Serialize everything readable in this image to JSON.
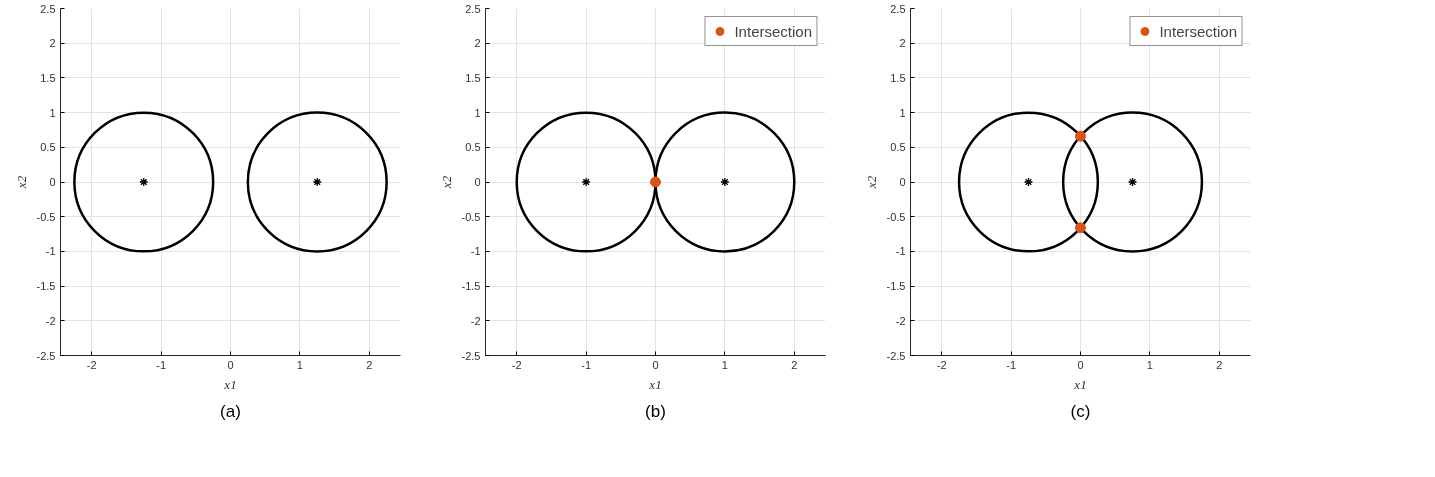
{
  "chart_data": [
    {
      "type": "bubble",
      "xlabel": "x1",
      "ylabel": "x2",
      "annotations": [
        "(a)"
      ],
      "xlim": [
        -2.45,
        2.45
      ],
      "ylim": [
        -2.5,
        2.5
      ],
      "xticks": [
        -2,
        -1,
        0,
        1,
        2
      ],
      "yticks": [
        -2.5,
        -2,
        -1.5,
        -1,
        -0.5,
        0,
        0.5,
        1,
        1.5,
        2,
        2.5
      ],
      "grid": true,
      "series": [
        {
          "color": "#000000",
          "x": [
            -1.25,
            1.25
          ],
          "values": [
            0,
            0
          ],
          "sizes": [
            1,
            1
          ]
        },
        {
          "type": "scatter",
          "marker": "cross",
          "color": "#000000",
          "x": [
            -1.25,
            1.25
          ],
          "values": [
            0,
            0
          ]
        }
      ]
    },
    {
      "type": "bubble",
      "xlabel": "x1",
      "ylabel": "x2",
      "annotations": [
        "(b)"
      ],
      "xlim": [
        -2.45,
        2.45
      ],
      "ylim": [
        -2.5,
        2.5
      ],
      "xticks": [
        -2,
        -1,
        0,
        1,
        2
      ],
      "yticks": [
        -2.5,
        -2,
        -1.5,
        -1,
        -0.5,
        0,
        0.5,
        1,
        1.5,
        2,
        2.5
      ],
      "grid": true,
      "legend": "top right",
      "series": [
        {
          "color": "#000000",
          "x": [
            -1,
            1
          ],
          "values": [
            0,
            0
          ],
          "sizes": [
            1,
            1
          ]
        },
        {
          "type": "scatter",
          "marker": "cross",
          "color": "#000000",
          "x": [
            -1,
            1
          ],
          "values": [
            0,
            0
          ]
        },
        {
          "type": "scatter",
          "marker": "circle",
          "name": "Intersection",
          "color": "#d95319",
          "x": [
            0
          ],
          "values": [
            0
          ]
        }
      ]
    },
    {
      "type": "bubble",
      "xlabel": "x1",
      "ylabel": "x2",
      "annotations": [
        "(c)"
      ],
      "xlim": [
        -2.45,
        2.45
      ],
      "ylim": [
        -2.5,
        2.5
      ],
      "xticks": [
        -2,
        -1,
        0,
        1,
        2
      ],
      "yticks": [
        -2.5,
        -2,
        -1.5,
        -1,
        -0.5,
        0,
        0.5,
        1,
        1.5,
        2,
        2.5
      ],
      "grid": true,
      "legend": "top right",
      "series": [
        {
          "color": "#000000",
          "x": [
            -0.75,
            0.75
          ],
          "values": [
            0,
            0
          ],
          "sizes": [
            1,
            1
          ]
        },
        {
          "type": "scatter",
          "marker": "cross",
          "color": "#000000",
          "x": [
            -0.75,
            0.75
          ],
          "values": [
            0,
            0
          ]
        },
        {
          "type": "scatter",
          "marker": "circle",
          "name": "Intersection",
          "color": "#d95319",
          "x": [
            0,
            0
          ],
          "values": [
            0.66,
            -0.66
          ]
        }
      ]
    }
  ]
}
